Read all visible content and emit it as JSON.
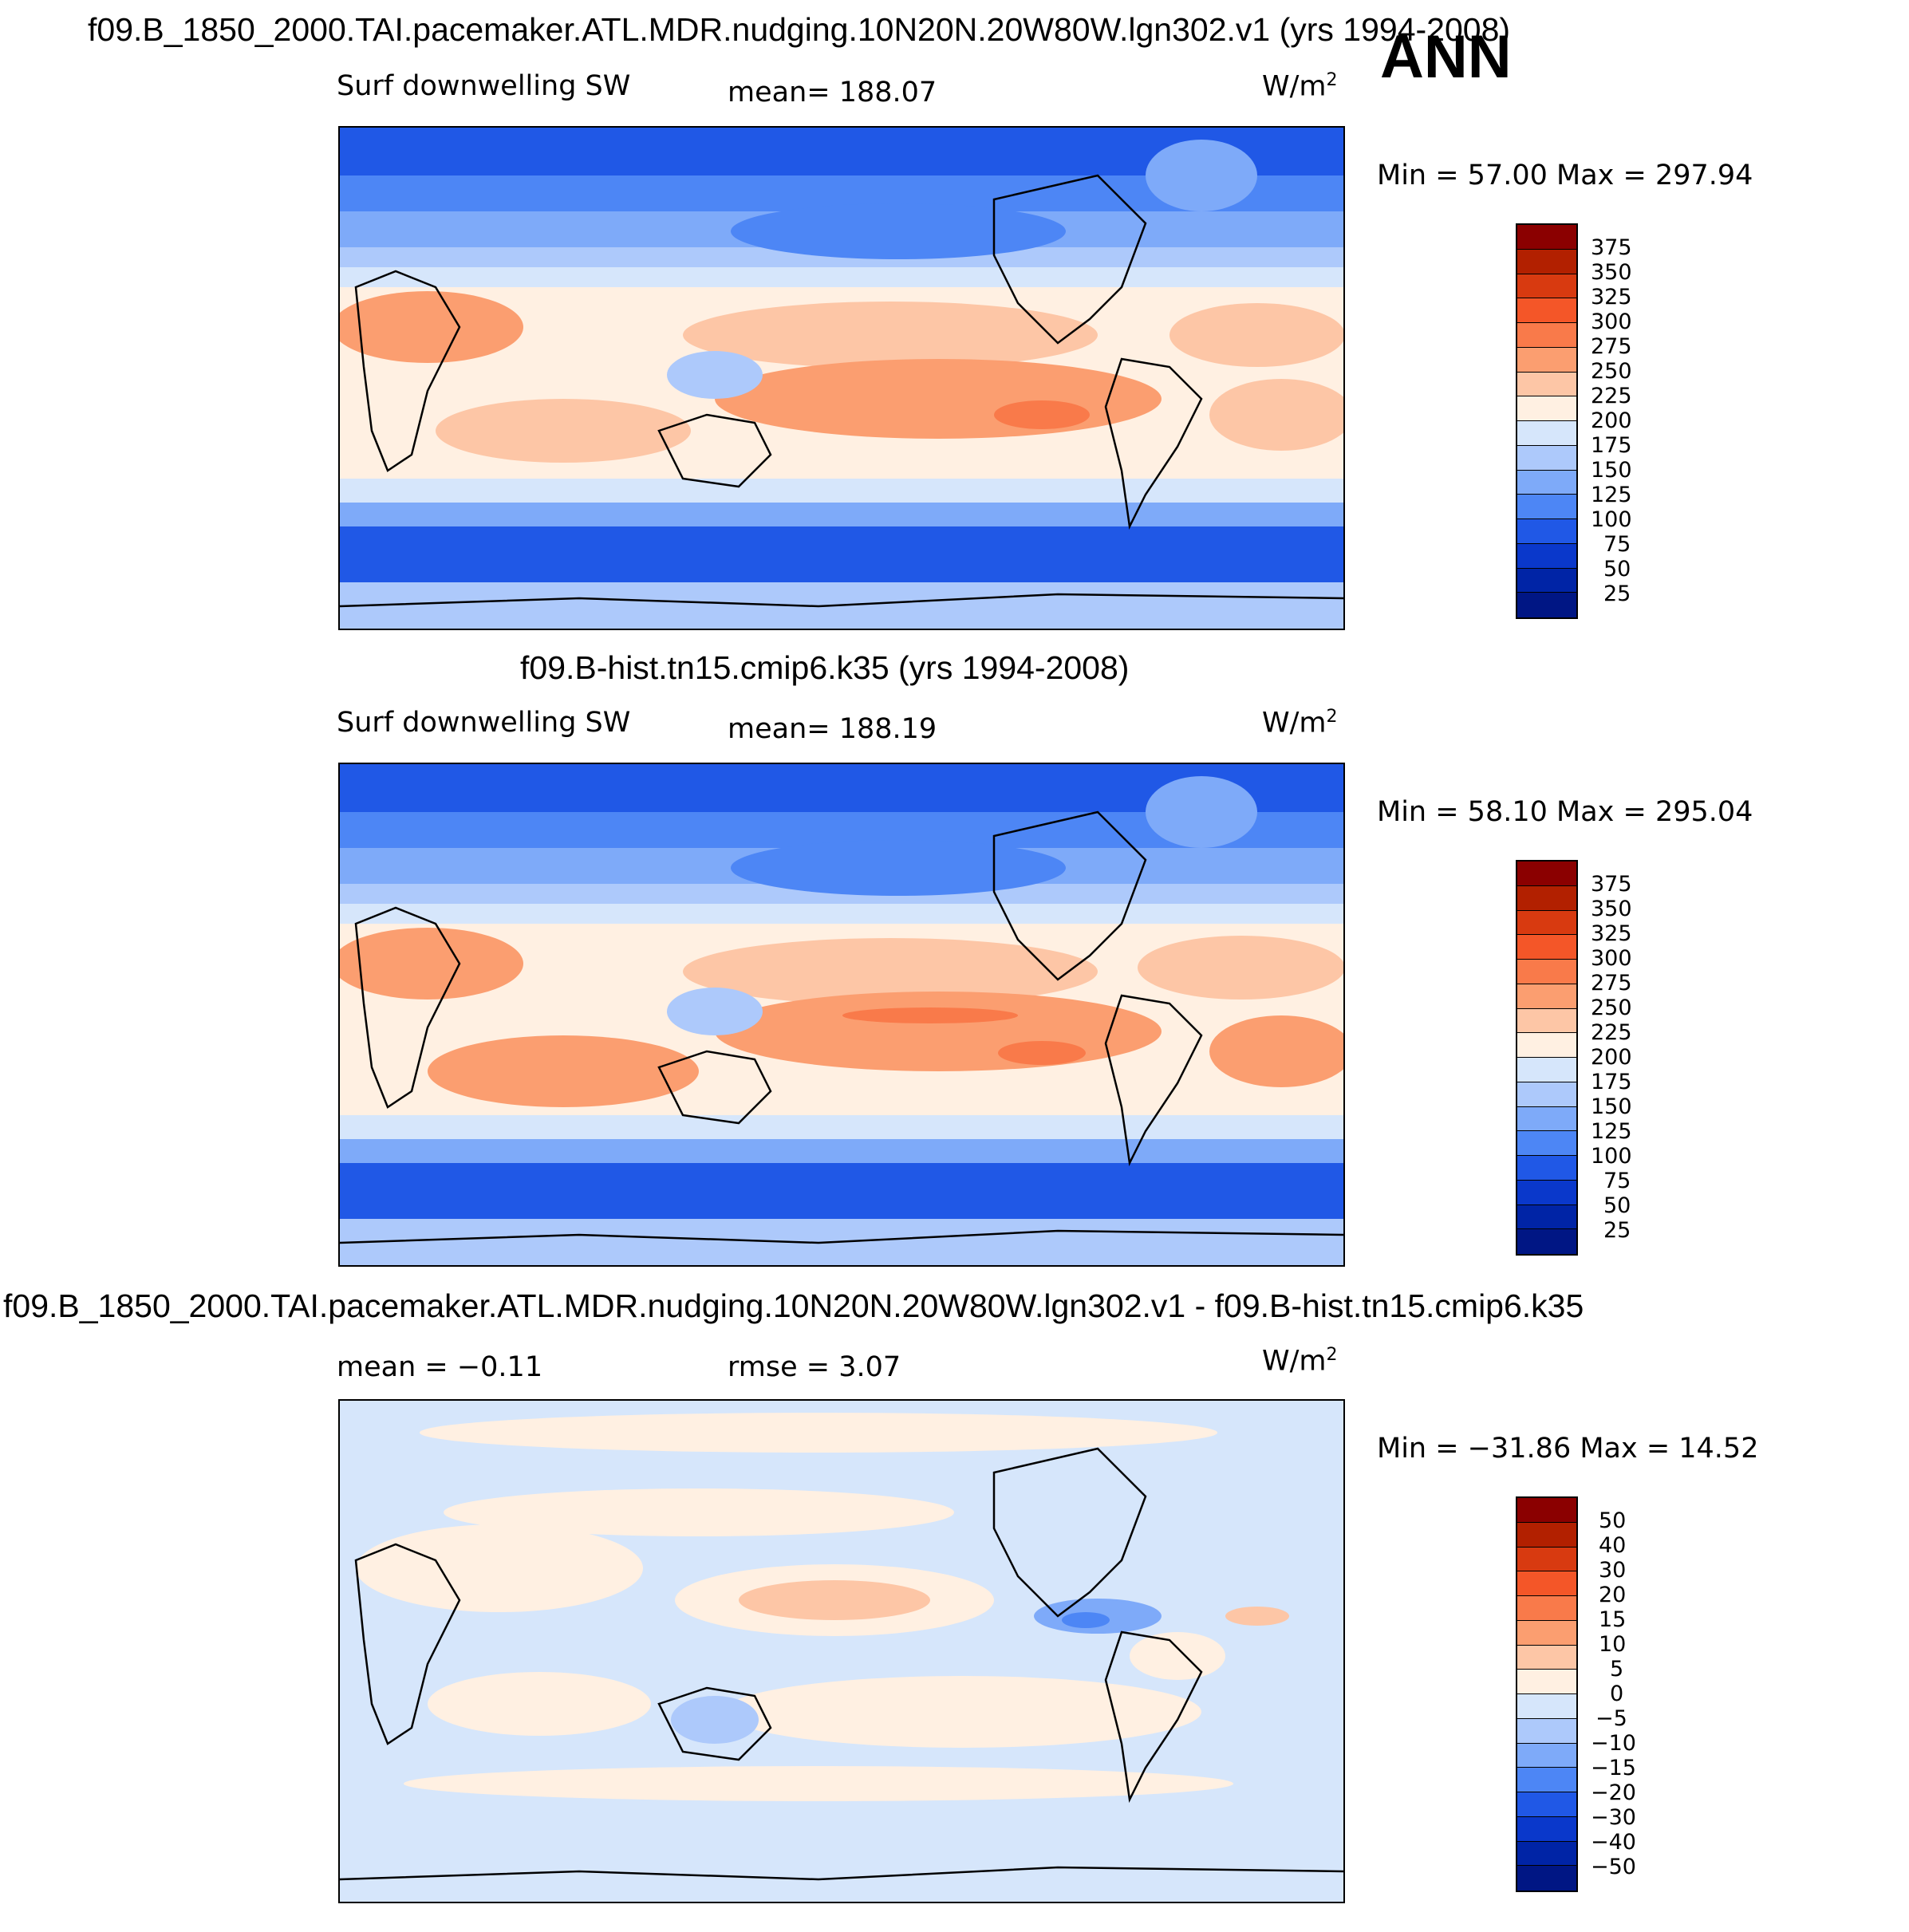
{
  "season": "ANN",
  "colors": {
    "abs": [
      "#8b0000",
      "#b22000",
      "#d83a10",
      "#f45628",
      "#f97a4a",
      "#fb9e70",
      "#fdc6a6",
      "#fff0e2",
      "#d6e6fb",
      "#adc9fb",
      "#7eaaf9",
      "#4d86f5",
      "#2058e6",
      "#0a38cb",
      "#0024a6",
      "#001684"
    ],
    "diff": [
      "#8b0000",
      "#b22000",
      "#d83a10",
      "#f45628",
      "#f97a4a",
      "#fb9e70",
      "#fdc6a6",
      "#fff0e2",
      "#d6e6fb",
      "#adc9fb",
      "#7eaaf9",
      "#4d86f5",
      "#2058e6",
      "#0a38cb",
      "#0024a6",
      "#001684"
    ]
  },
  "chart_data": [
    {
      "type": "heatmap",
      "title": "f09.B_1850_2000.TAI.pacemaker.ATL.MDR.nudging.10N20N.20W80W.lgn302.v1 (yrs 1994-2008)",
      "variable": "Surf downwelling SW",
      "units": "W/m",
      "units_sup": "2",
      "mean": "mean=  188.07",
      "minmax": "Min =   57.00  Max =  297.94",
      "min": 57.0,
      "max": 297.94,
      "levels": [
        "375",
        "350",
        "325",
        "300",
        "275",
        "250",
        "225",
        "200",
        "175",
        "150",
        "125",
        "100",
        "75",
        "50",
        "25"
      ]
    },
    {
      "type": "heatmap",
      "title": "f09.B-hist.tn15.cmip6.k35 (yrs 1994-2008)",
      "variable": "Surf downwelling SW",
      "units": "W/m",
      "units_sup": "2",
      "mean": "mean=  188.19",
      "minmax": "Min =   58.10  Max =  295.04",
      "min": 58.1,
      "max": 295.04,
      "levels": [
        "375",
        "350",
        "325",
        "300",
        "275",
        "250",
        "225",
        "200",
        "175",
        "150",
        "125",
        "100",
        "75",
        "50",
        "25"
      ]
    },
    {
      "type": "heatmap",
      "title": "f09.B_1850_2000.TAI.pacemaker.ATL.MDR.nudging.10N20N.20W80W.lgn302.v1 - f09.B-hist.tn15.cmip6.k35",
      "variable": "",
      "units": "W/m",
      "units_sup": "2",
      "mean": "mean =   −0.11",
      "rmse": "rmse =    3.07",
      "minmax": "Min = −31.86  Max =   14.52",
      "min": -31.86,
      "max": 14.52,
      "levels": [
        "50",
        "40",
        "30",
        "20",
        "15",
        "10",
        "5",
        "0",
        "−5",
        "−10",
        "−15",
        "−20",
        "−30",
        "−40",
        "−50"
      ]
    }
  ]
}
